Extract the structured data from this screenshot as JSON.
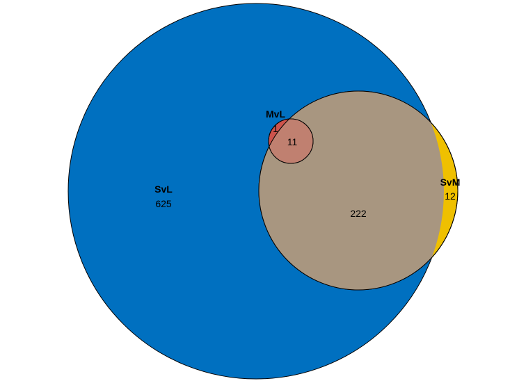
{
  "sets": [
    {
      "name": "SvL",
      "color": "#0070C0",
      "only_count": "625"
    },
    {
      "name": "SvM",
      "color": "#EFC000",
      "only_count": "12"
    },
    {
      "name": "MvL",
      "color": "#CD534C",
      "only_count": "1"
    }
  ],
  "intersections": {
    "SvL_SvM": "222",
    "all_three": "11"
  },
  "colors": {
    "overlap_svl_svm": "#A89680",
    "overlap_all": "#C08070",
    "outline": "#000000"
  }
}
